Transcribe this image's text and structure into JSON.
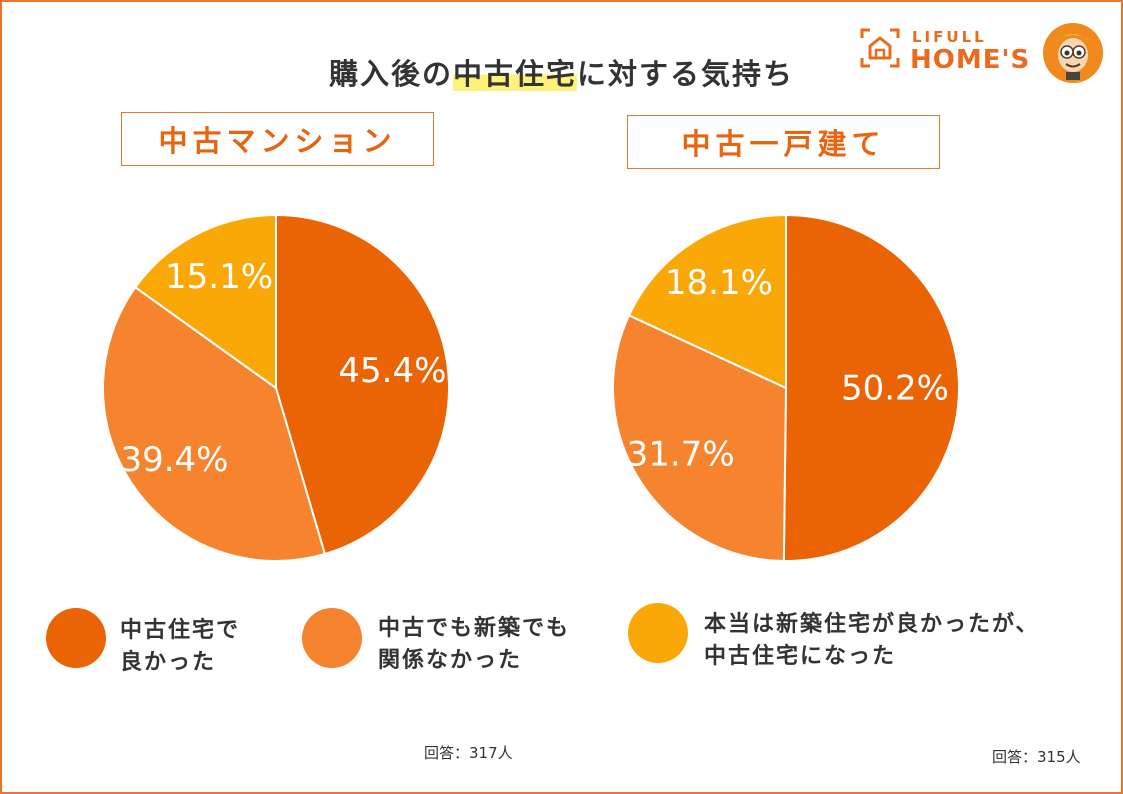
{
  "title_prefix": "購入後の",
  "title_highlight": "中古住宅",
  "title_suffix": "に対する気持ち",
  "logo": {
    "top_text": "LIFULL",
    "bottom_text": "HOME'S"
  },
  "colors": {
    "frame": "#E8772E",
    "dark_orange": "#EA6406",
    "mid_orange": "#F6832E",
    "yellow": "#F9A807",
    "highlight": "#FFF27A"
  },
  "chart_data": [
    {
      "type": "pie",
      "title": "中古マンション",
      "categories": [
        "中古住宅で良かった",
        "中古でも新築でも関係なかった",
        "本当は新築住宅が良かったが、中古住宅になった"
      ],
      "values": [
        45.4,
        39.4,
        15.1
      ],
      "labels": [
        "45.4%",
        "39.4%",
        "15.1%"
      ],
      "start_angle": "top",
      "direction": "clockwise",
      "respondents": "回答：317人"
    },
    {
      "type": "pie",
      "title": "中古一戸建て",
      "categories": [
        "中古住宅で良かった",
        "中古でも新築でも関係なかった",
        "本当は新築住宅が良かったが、中古住宅になった"
      ],
      "values": [
        50.2,
        31.7,
        18.1
      ],
      "labels": [
        "50.2%",
        "31.7%",
        "18.1%"
      ],
      "start_angle": "top",
      "direction": "clockwise",
      "respondents": "回答：315人"
    }
  ],
  "legend": [
    {
      "text": "中古住宅で\n良かった",
      "color": "#EA6406"
    },
    {
      "text": "中古でも新築でも\n関係なかった",
      "color": "#F6832E"
    },
    {
      "text": "本当は新築住宅が良かったが、\n中古住宅になった",
      "color": "#F9A807"
    }
  ]
}
